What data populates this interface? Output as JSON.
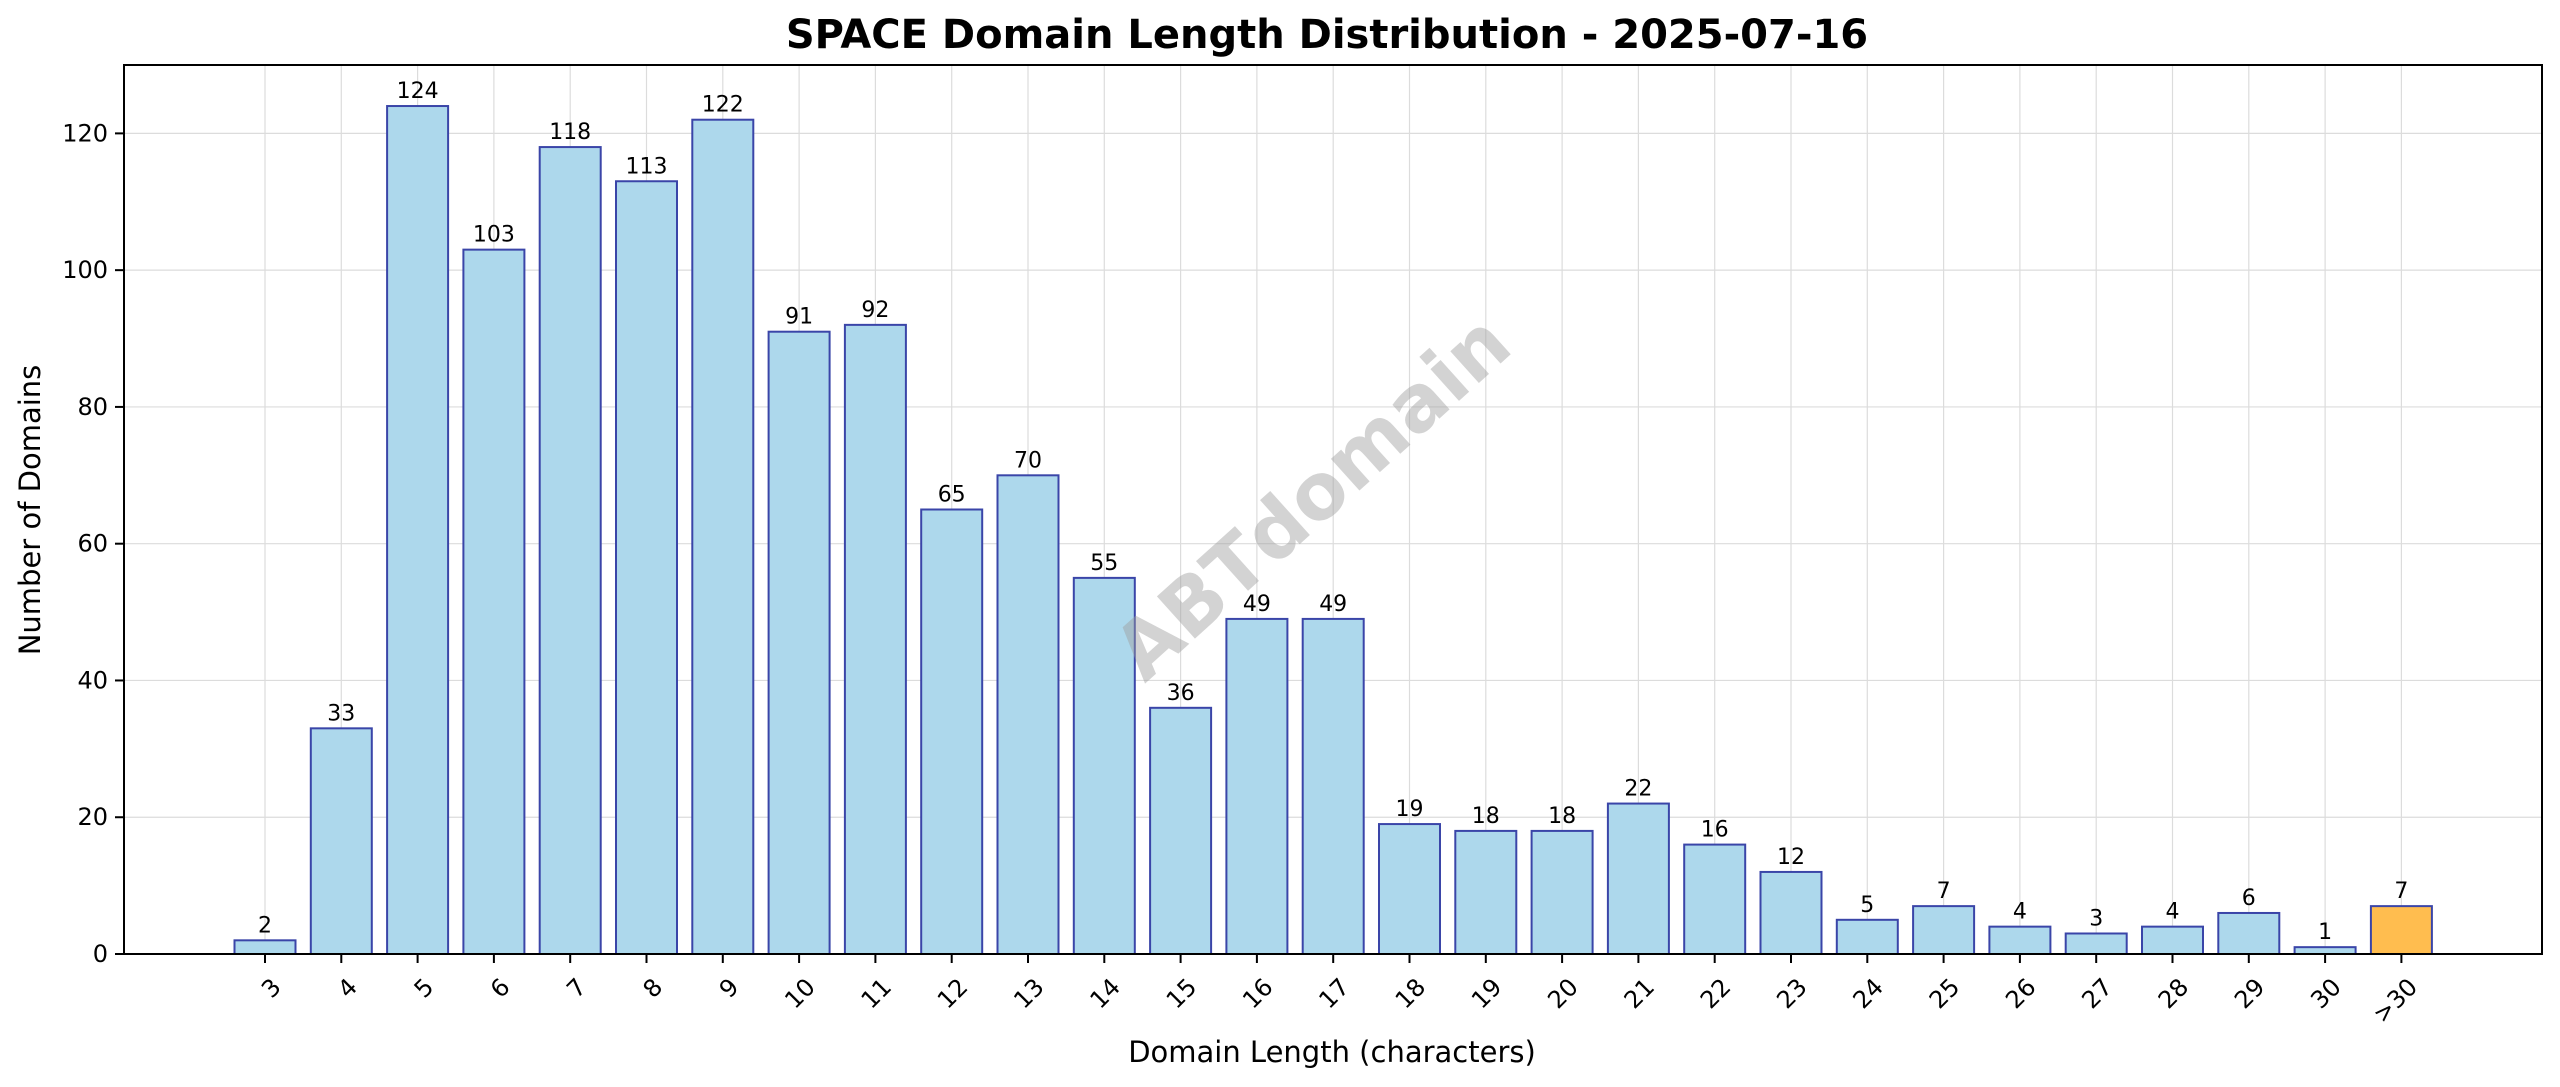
{
  "chart_data": {
    "type": "bar",
    "title": "SPACE Domain Length Distribution - 2025-07-16",
    "xlabel": "Domain Length (characters)",
    "ylabel": "Number of Domains",
    "categories": [
      "3",
      "4",
      "5",
      "6",
      "7",
      "8",
      "9",
      "10",
      "11",
      "12",
      "13",
      "14",
      "15",
      "16",
      "17",
      "18",
      "19",
      "20",
      "21",
      "22",
      "23",
      "24",
      "25",
      "26",
      "27",
      "28",
      "29",
      "30",
      ">30"
    ],
    "values": [
      2,
      33,
      124,
      103,
      118,
      113,
      122,
      91,
      92,
      65,
      70,
      55,
      36,
      49,
      49,
      19,
      18,
      18,
      22,
      16,
      12,
      5,
      7,
      4,
      3,
      4,
      6,
      1,
      7
    ],
    "ylim": [
      0,
      130
    ],
    "yticks": [
      0,
      20,
      40,
      60,
      80,
      100,
      120
    ],
    "grid": true,
    "watermark": "ABTdomain",
    "colors": {
      "bar_fill": "#add8ec",
      "bar_edge": "#3a45a8",
      "highlight_fill": "#ffbd4f",
      "highlight_category": ">30"
    }
  }
}
